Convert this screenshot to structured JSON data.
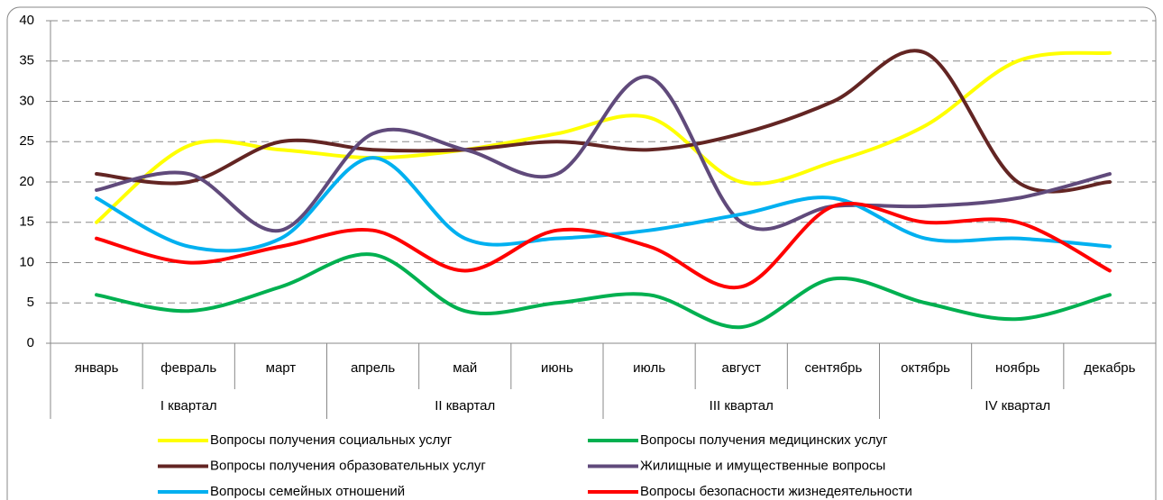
{
  "chart_data": {
    "type": "line",
    "categories": [
      "январь",
      "февраль",
      "март",
      "апрель",
      "май",
      "июнь",
      "июль",
      "август",
      "сентябрь",
      "октябрь",
      "ноябрь",
      "декабрь"
    ],
    "quarters": [
      "I квартал",
      "II квартал",
      "III квартал",
      "IV квартал"
    ],
    "series": [
      {
        "name": "Вопросы получения социальных услуг",
        "color": "#ffff00",
        "values": [
          15,
          24.5,
          24,
          23,
          24,
          26,
          28,
          20,
          22.5,
          27,
          35,
          36
        ]
      },
      {
        "name": "Вопросы получения медицинских услуг",
        "color": "#00b050",
        "values": [
          6,
          4,
          7,
          11,
          4,
          5,
          6,
          2,
          8,
          5,
          3,
          6
        ]
      },
      {
        "name": "Вопросы получения образовательных услуг",
        "color": "#632523",
        "values": [
          21,
          20,
          25,
          24,
          24,
          25,
          24,
          26,
          30,
          36,
          20,
          20
        ]
      },
      {
        "name": "Жилищные и имущественные вопросы",
        "color": "#604a7b",
        "values": [
          19,
          21,
          14,
          26,
          24,
          21,
          33,
          15,
          17,
          17,
          18,
          21
        ]
      },
      {
        "name": "Вопросы семейных отношений",
        "color": "#00b0f0",
        "values": [
          18,
          12,
          13,
          23,
          13,
          13,
          14,
          16,
          18,
          13,
          13,
          12
        ]
      },
      {
        "name": "Вопросы безопасности жизнедеятельности",
        "color": "#ff0000",
        "values": [
          13,
          10,
          12,
          14,
          9,
          14,
          12,
          7,
          17,
          15,
          15,
          9
        ]
      }
    ],
    "ylim": [
      0,
      40
    ],
    "yticks": [
      0,
      5,
      10,
      15,
      20,
      25,
      30,
      35,
      40
    ],
    "grid": true,
    "legend": "bottom",
    "smooth": true
  }
}
